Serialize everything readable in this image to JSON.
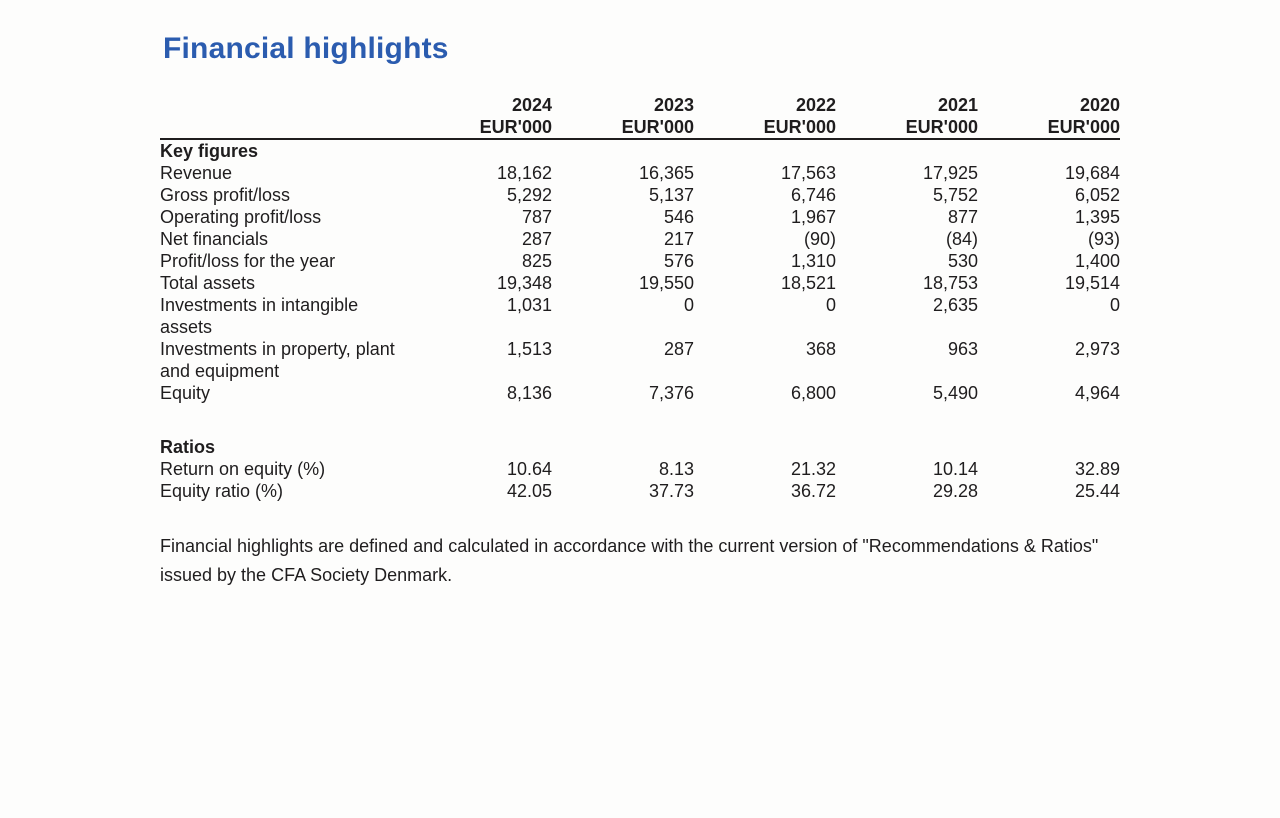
{
  "page": {
    "title": "Financial highlights",
    "accent_color": "#2b5caf"
  },
  "table": {
    "unit_label": "EUR'000",
    "years": [
      "2024",
      "2023",
      "2022",
      "2021",
      "2020"
    ],
    "sections": [
      {
        "header": "Key figures",
        "rows": [
          {
            "label": "Revenue",
            "values": [
              "18,162",
              "16,365",
              "17,563",
              "17,925",
              "19,684"
            ]
          },
          {
            "label": "Gross profit/loss",
            "values": [
              "5,292",
              "5,137",
              "6,746",
              "5,752",
              "6,052"
            ]
          },
          {
            "label": "Operating profit/loss",
            "values": [
              "787",
              "546",
              "1,967",
              "877",
              "1,395"
            ]
          },
          {
            "label": "Net financials",
            "values": [
              "287",
              "217",
              "(90)",
              "(84)",
              "(93)"
            ]
          },
          {
            "label": "Profit/loss for the year",
            "values": [
              "825",
              "576",
              "1,310",
              "530",
              "1,400"
            ]
          },
          {
            "label": "Total assets",
            "values": [
              "19,348",
              "19,550",
              "18,521",
              "18,753",
              "19,514"
            ]
          },
          {
            "label": "Investments in intangible assets",
            "values": [
              "1,031",
              "0",
              "0",
              "2,635",
              "0"
            ]
          },
          {
            "label": "Investments in property, plant and equipment",
            "values": [
              "1,513",
              "287",
              "368",
              "963",
              "2,973"
            ]
          },
          {
            "label": "Equity",
            "values": [
              "8,136",
              "7,376",
              "6,800",
              "5,490",
              "4,964"
            ]
          }
        ]
      },
      {
        "header": "Ratios",
        "rows": [
          {
            "label": "Return on equity (%)",
            "values": [
              "10.64",
              "8.13",
              "21.32",
              "10.14",
              "32.89"
            ]
          },
          {
            "label": "Equity ratio (%)",
            "values": [
              "42.05",
              "37.73",
              "36.72",
              "29.28",
              "25.44"
            ]
          }
        ]
      }
    ]
  },
  "footnote": {
    "text": "Financial highlights are defined and calculated in accordance with the current version of \"Recommendations & Ratios\" issued by the CFA Society Denmark."
  }
}
